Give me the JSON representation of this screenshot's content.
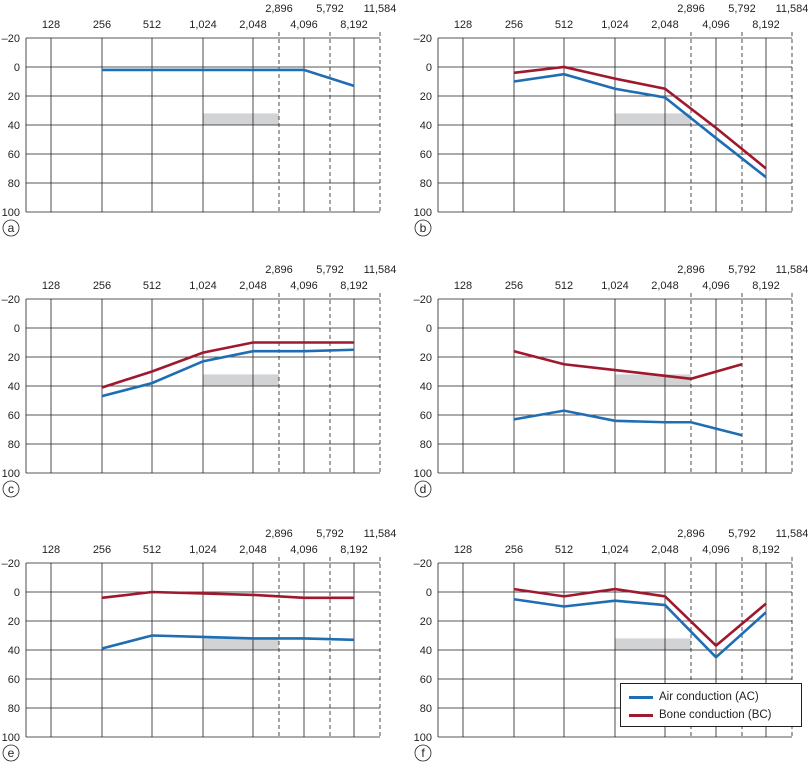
{
  "chart_data": [
    {
      "type": "line",
      "panel_label": "a",
      "frequency_ticks_top": [
        "2,896",
        "5,792",
        "11,584"
      ],
      "frequency_ticks_bottom": [
        "128",
        "256",
        "512",
        "1,024",
        "2,048",
        "4,096",
        "8,192"
      ],
      "y_ticks": [
        "–20",
        "0",
        "20",
        "40",
        "60",
        "80",
        "100"
      ],
      "ylim": [
        -20,
        100
      ],
      "y_inverted": true,
      "grid": true,
      "shaded_band": {
        "x": [
          "1,024",
          "2,896"
        ],
        "y": [
          32,
          40
        ]
      },
      "series": [
        {
          "name": "Air conduction (AC)",
          "x": [
            "256",
            "512",
            "1,024",
            "2,048",
            "4,096",
            "8,192"
          ],
          "values": [
            2,
            2,
            2,
            2,
            2,
            13
          ]
        }
      ]
    },
    {
      "type": "line",
      "panel_label": "b",
      "frequency_ticks_top": [
        "2,896",
        "5,792",
        "11,584"
      ],
      "frequency_ticks_bottom": [
        "128",
        "256",
        "512",
        "1,024",
        "2,048",
        "4,096",
        "8,192"
      ],
      "y_ticks": [
        "–20",
        "0",
        "20",
        "40",
        "60",
        "80",
        "100"
      ],
      "ylim": [
        -20,
        100
      ],
      "y_inverted": true,
      "grid": true,
      "shaded_band": {
        "x": [
          "1,024",
          "2,896"
        ],
        "y": [
          32,
          40
        ]
      },
      "series": [
        {
          "name": "Air conduction (AC)",
          "x": [
            "256",
            "512",
            "1,024",
            "2,048",
            "4,096",
            "8,192"
          ],
          "values": [
            10,
            5,
            15,
            21,
            49,
            76
          ]
        },
        {
          "name": "Bone conduction (BC)",
          "x": [
            "256",
            "512",
            "1,024",
            "2,048",
            "4,096",
            "8,192"
          ],
          "values": [
            4,
            0,
            8,
            15,
            42,
            70
          ]
        }
      ]
    },
    {
      "type": "line",
      "panel_label": "c",
      "frequency_ticks_top": [
        "2,896",
        "5,792",
        "11,584"
      ],
      "frequency_ticks_bottom": [
        "128",
        "256",
        "512",
        "1,024",
        "2,048",
        "4,096",
        "8,192"
      ],
      "y_ticks": [
        "–20",
        "0",
        "20",
        "40",
        "60",
        "80",
        "100"
      ],
      "ylim": [
        -20,
        100
      ],
      "y_inverted": true,
      "grid": true,
      "shaded_band": {
        "x": [
          "1,024",
          "2,896"
        ],
        "y": [
          32,
          40
        ]
      },
      "series": [
        {
          "name": "Air conduction (AC)",
          "x": [
            "256",
            "512",
            "1,024",
            "2,048",
            "4,096",
            "8,192"
          ],
          "values": [
            47,
            38,
            23,
            16,
            16,
            15
          ]
        },
        {
          "name": "Bone conduction (BC)",
          "x": [
            "256",
            "512",
            "1,024",
            "2,048",
            "4,096",
            "8,192"
          ],
          "values": [
            41,
            30,
            17,
            10,
            10,
            10
          ]
        }
      ]
    },
    {
      "type": "line",
      "panel_label": "d",
      "frequency_ticks_top": [
        "2,896",
        "5,792",
        "11,584"
      ],
      "frequency_ticks_bottom": [
        "128",
        "256",
        "512",
        "1,024",
        "2,048",
        "4,096",
        "8,192"
      ],
      "y_ticks": [
        "–20",
        "0",
        "20",
        "40",
        "60",
        "80",
        "100"
      ],
      "ylim": [
        -20,
        100
      ],
      "y_inverted": true,
      "grid": true,
      "shaded_band": {
        "x": [
          "1,024",
          "2,896"
        ],
        "y": [
          32,
          40
        ]
      },
      "series": [
        {
          "name": "Air conduction (AC)",
          "x": [
            "256",
            "512",
            "1,024",
            "2,048",
            "2,896",
            "5,792"
          ],
          "values": [
            63,
            57,
            64,
            65,
            65,
            74
          ]
        },
        {
          "name": "Bone conduction (BC)",
          "x": [
            "256",
            "512",
            "1,024",
            "2,048",
            "2,896",
            "5,792"
          ],
          "values": [
            16,
            25,
            29,
            33,
            35,
            25
          ]
        }
      ]
    },
    {
      "type": "line",
      "panel_label": "e",
      "frequency_ticks_top": [
        "2,896",
        "5,792",
        "11,584"
      ],
      "frequency_ticks_bottom": [
        "128",
        "256",
        "512",
        "1,024",
        "2,048",
        "4,096",
        "8,192"
      ],
      "y_ticks": [
        "–20",
        "0",
        "20",
        "40",
        "60",
        "80",
        "100"
      ],
      "ylim": [
        -20,
        100
      ],
      "y_inverted": true,
      "grid": true,
      "shaded_band": {
        "x": [
          "1,024",
          "2,896"
        ],
        "y": [
          32,
          40
        ]
      },
      "series": [
        {
          "name": "Air conduction (AC)",
          "x": [
            "256",
            "512",
            "1,024",
            "2,048",
            "4,096",
            "8,192"
          ],
          "values": [
            39,
            30,
            31,
            32,
            32,
            33
          ]
        },
        {
          "name": "Bone conduction (BC)",
          "x": [
            "256",
            "512",
            "1,024",
            "2,048",
            "4,096",
            "8,192"
          ],
          "values": [
            4,
            0,
            1,
            2,
            4,
            4
          ]
        }
      ]
    },
    {
      "type": "line",
      "panel_label": "f",
      "frequency_ticks_top": [
        "2,896",
        "5,792",
        "11,584"
      ],
      "frequency_ticks_bottom": [
        "128",
        "256",
        "512",
        "1,024",
        "2,048",
        "4,096",
        "8,192"
      ],
      "y_ticks": [
        "–20",
        "0",
        "20",
        "40",
        "60",
        "80",
        "100"
      ],
      "ylim": [
        -20,
        100
      ],
      "y_inverted": true,
      "grid": true,
      "shaded_band": {
        "x": [
          "1,024",
          "2,896"
        ],
        "y": [
          32,
          40
        ]
      },
      "series": [
        {
          "name": "Air conduction (AC)",
          "x": [
            "256",
            "512",
            "1,024",
            "2,048",
            "4,096",
            "8,192"
          ],
          "values": [
            5,
            10,
            6,
            9,
            45,
            14
          ]
        },
        {
          "name": "Bone conduction (BC)",
          "x": [
            "256",
            "512",
            "1,024",
            "2,048",
            "4,096",
            "8,192"
          ],
          "values": [
            -2,
            3,
            -2,
            3,
            37,
            8
          ]
        }
      ]
    }
  ],
  "legend": {
    "placement": "bottom-right",
    "items": [
      {
        "label": "Air conduction (AC)",
        "color": "#1f6db2"
      },
      {
        "label": "Bone conduction (BC)",
        "color": "#a0182e"
      }
    ]
  },
  "colors": {
    "ac": "#1f6db2",
    "bc": "#a0182e",
    "grid": "#231f20",
    "band": "#d1d3d4"
  }
}
